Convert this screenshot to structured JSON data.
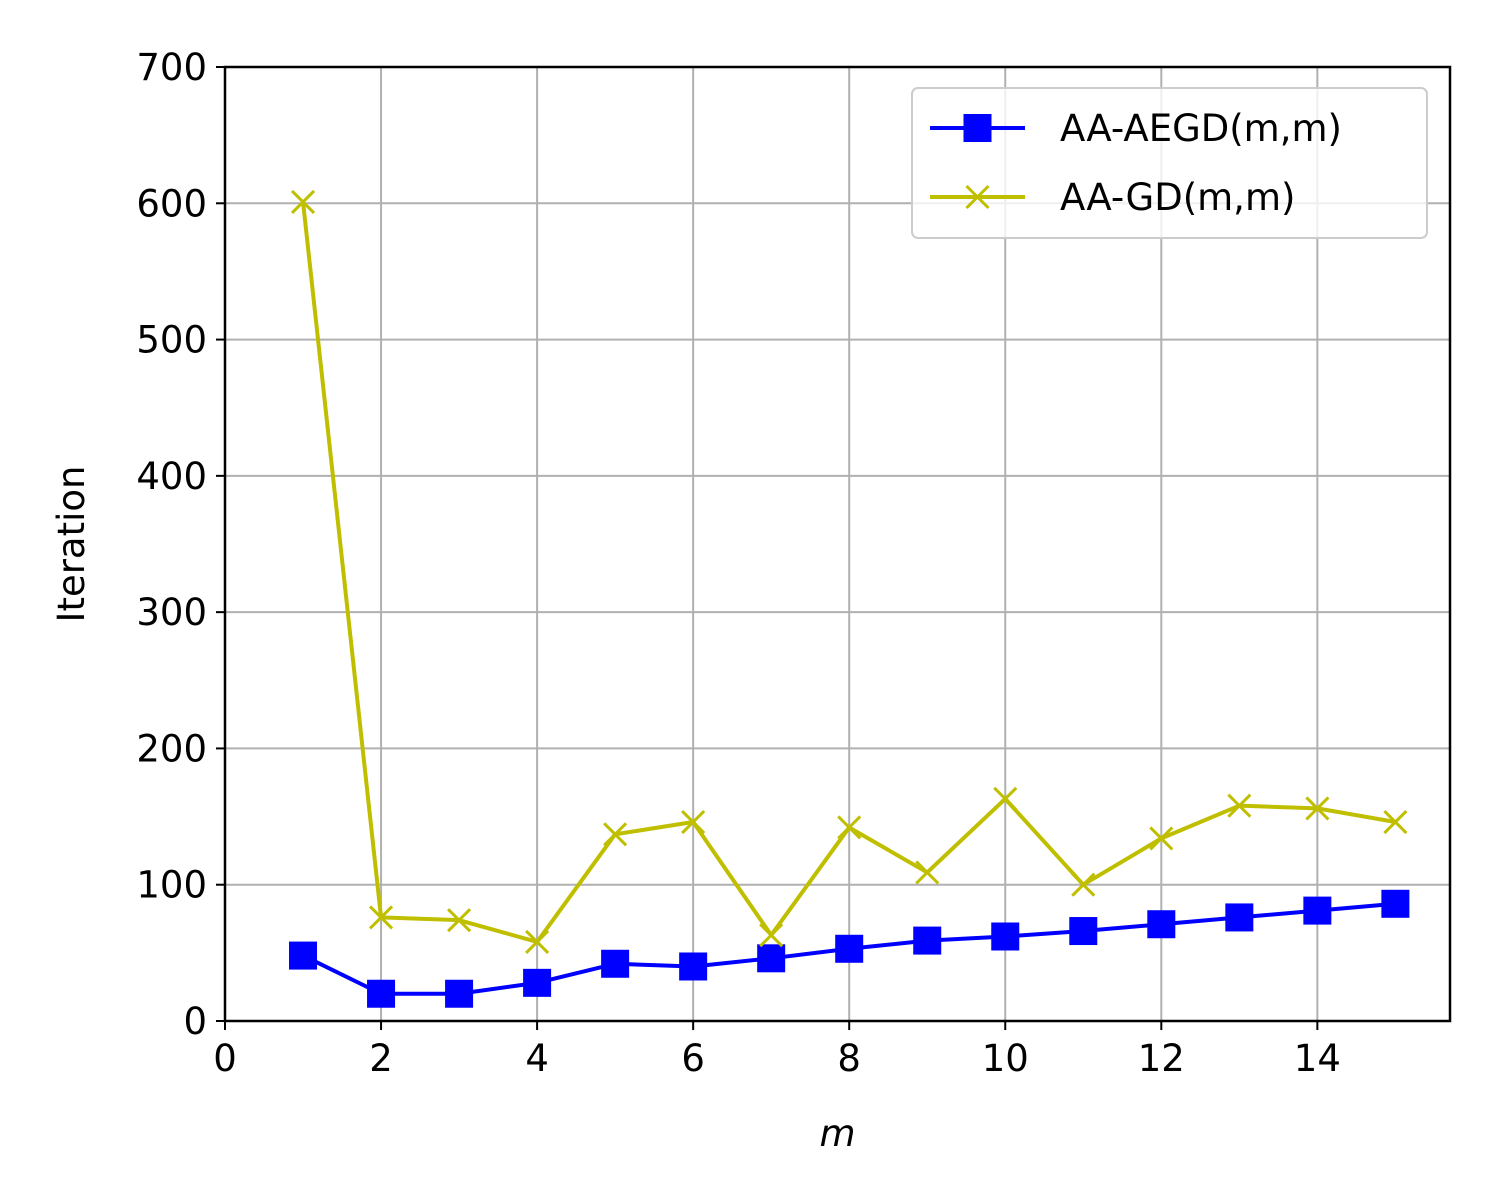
{
  "chart_data": {
    "type": "line",
    "xlabel": "m",
    "ylabel": "Iteration",
    "xlim": [
      0,
      15.7
    ],
    "ylim": [
      0,
      700
    ],
    "xticks": [
      0,
      2,
      4,
      6,
      8,
      10,
      12,
      14
    ],
    "yticks": [
      0,
      100,
      200,
      300,
      400,
      500,
      600,
      700
    ],
    "grid": true,
    "legend_position": "top-right",
    "x": [
      1,
      2,
      3,
      4,
      5,
      6,
      7,
      8,
      9,
      10,
      11,
      12,
      13,
      14,
      15
    ],
    "series": [
      {
        "name": "AA-AEGD(m,m)",
        "color": "#0000ff",
        "marker": "square",
        "values": [
          48,
          20,
          20,
          28,
          42,
          40,
          46,
          53,
          59,
          62,
          66,
          71,
          76,
          81,
          86
        ]
      },
      {
        "name": "AA-GD(m,m)",
        "color": "#bfbf00",
        "marker": "x",
        "values": [
          601,
          76,
          74,
          58,
          137,
          146,
          63,
          142,
          109,
          163,
          100,
          134,
          158,
          156,
          146
        ]
      }
    ]
  }
}
